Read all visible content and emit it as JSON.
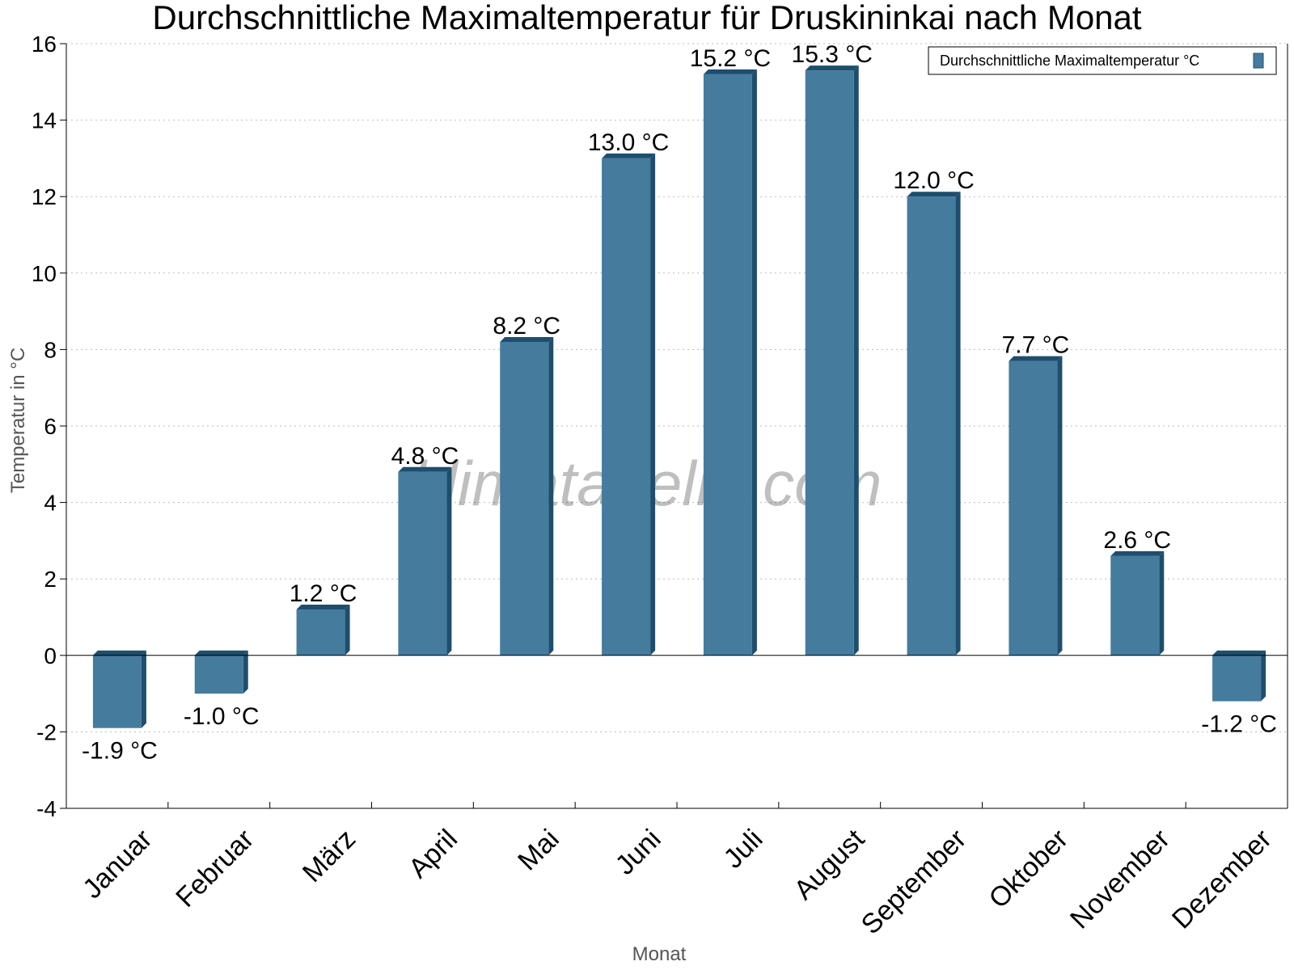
{
  "chart_data": {
    "type": "bar",
    "title": "Durchschnittliche Maximaltemperatur für Druskininkai nach Monat",
    "xlabel": "Monat",
    "ylabel": "Temperatur in °C",
    "categories": [
      "Januar",
      "Februar",
      "März",
      "April",
      "Mai",
      "Juni",
      "Juli",
      "August",
      "September",
      "Oktober",
      "November",
      "Dezember"
    ],
    "series": [
      {
        "name": "Durchschnittliche Maximaltemperatur °C",
        "values": [
          -1.9,
          -1.0,
          1.2,
          4.8,
          8.2,
          13.0,
          15.2,
          15.3,
          12.0,
          7.7,
          2.6,
          -1.2
        ]
      }
    ],
    "data_labels": [
      "-1.9 °C",
      "-1.0 °C",
      "1.2 °C",
      "4.8 °C",
      "8.2 °C",
      "13.0 °C",
      "15.2 °C",
      "15.3 °C",
      "12.0 °C",
      "7.7 °C",
      "2.6 °C",
      "-1.2 °C"
    ],
    "ylim": [
      -4,
      16
    ],
    "yticks": [
      -4,
      -2,
      0,
      2,
      4,
      6,
      8,
      10,
      12,
      14,
      16
    ],
    "grid": true,
    "legend_position": "top-right",
    "colors": {
      "bar_front": "#457b9d",
      "bar_side": "#1d4e6e"
    },
    "watermark": "klimatabelle.com"
  }
}
